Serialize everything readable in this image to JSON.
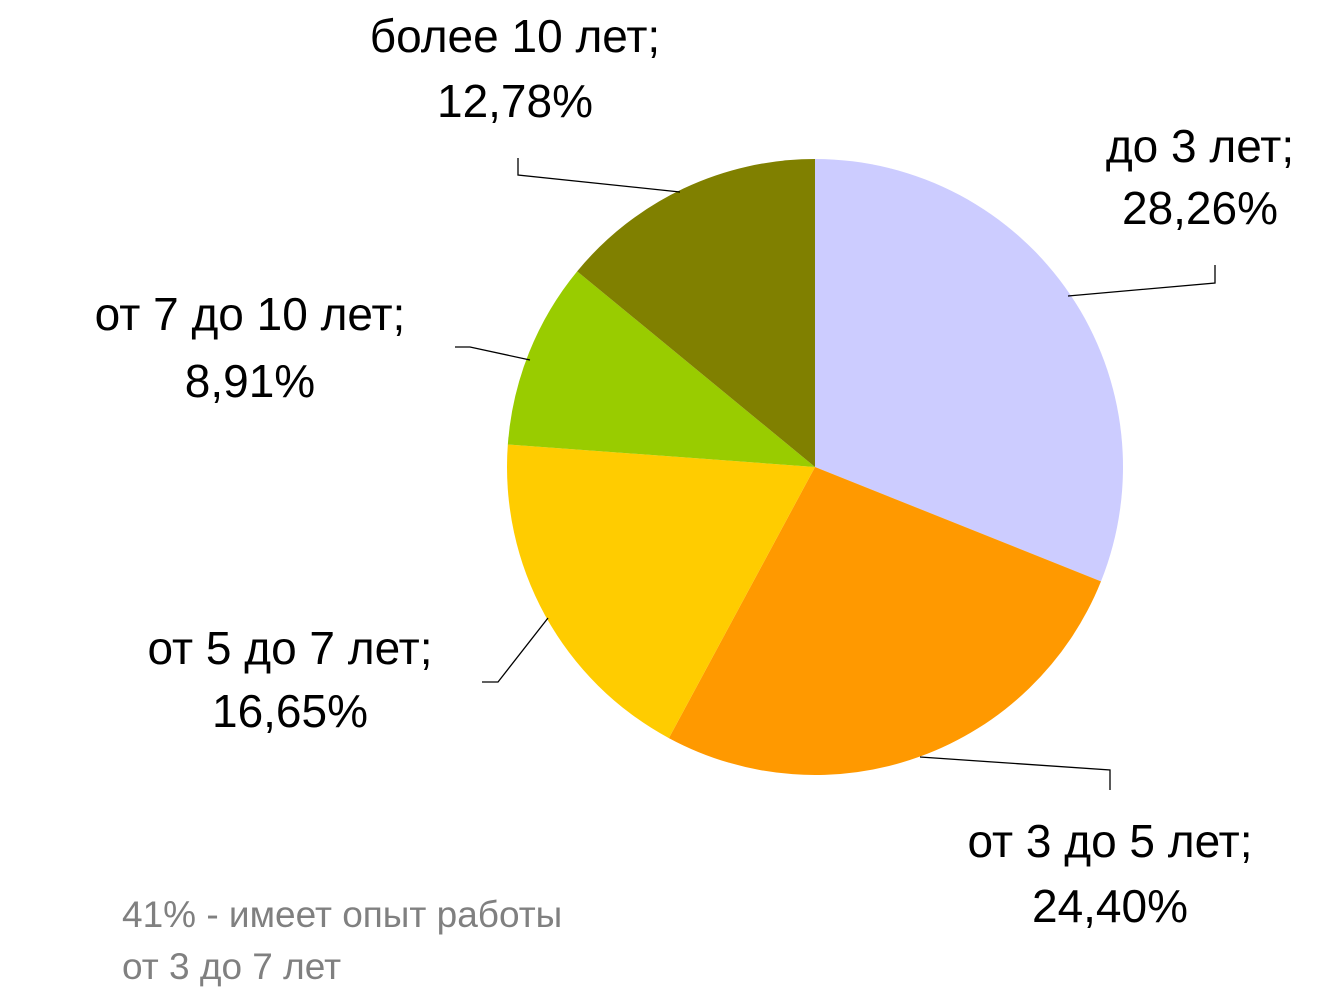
{
  "chart_data": {
    "type": "pie",
    "categories": [
      "до 3 лет;",
      "от 3 до 5 лет;",
      "от 5 до 7 лет;",
      "от 7 до 10 лет;",
      "более 10 лет;"
    ],
    "values": [
      28.26,
      24.4,
      16.65,
      8.91,
      12.78
    ],
    "value_labels": [
      "28,26%",
      "24,40%",
      "16,65%",
      "8,91%",
      "12,78%"
    ],
    "colors": [
      "#ccccff",
      "#ff9900",
      "#ffcc00",
      "#99cc00",
      "#808000"
    ],
    "annotation": [
      "41% - имеет опыт работы",
      "от 3 до 7 лет"
    ]
  }
}
